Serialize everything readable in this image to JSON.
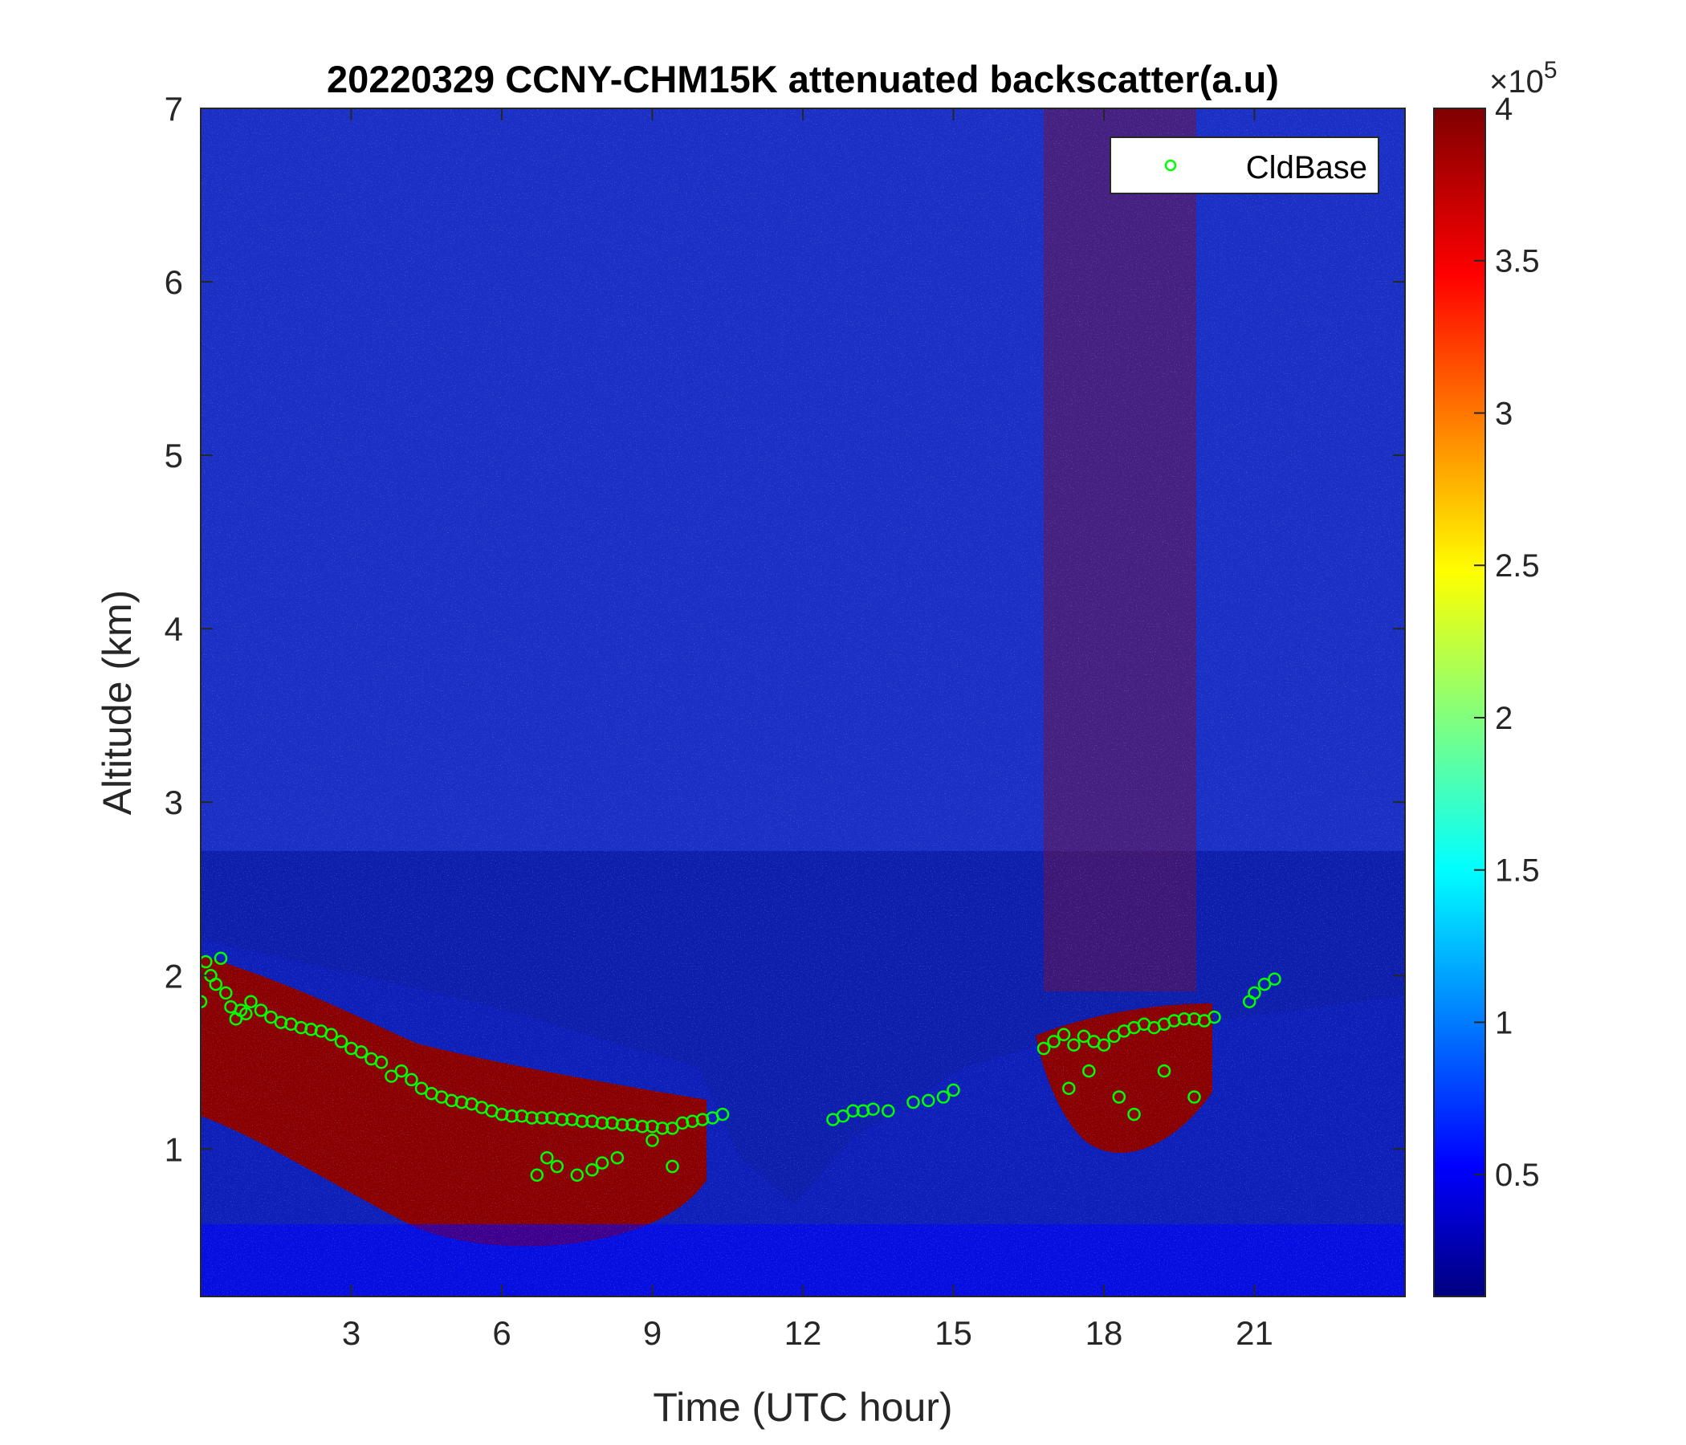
{
  "chart_data": {
    "type": "heatmap",
    "title": "20220329 CCNY-CHM15K attenuated backscatter(a.u)",
    "xlabel": "Time (UTC hour)",
    "ylabel": "Altitude (km)",
    "xlim": [
      0,
      24
    ],
    "ylim": [
      0.15,
      7
    ],
    "x_ticks": [
      3,
      6,
      9,
      12,
      15,
      18,
      21
    ],
    "x_tick_labels": [
      "3",
      "6",
      "9",
      "12",
      "15",
      "18",
      "21"
    ],
    "y_ticks": [
      1,
      2,
      3,
      4,
      5,
      6,
      7
    ],
    "y_tick_labels": [
      "1",
      "2",
      "3",
      "4",
      "5",
      "6",
      "7"
    ],
    "colorbar": {
      "colormap": "jet",
      "clim": [
        0.1,
        4.0
      ],
      "ticks": [
        0.5,
        1,
        1.5,
        2,
        2.5,
        3,
        3.5,
        4
      ],
      "tick_labels": [
        "0.5",
        "1",
        "1.5",
        "2",
        "2.5",
        "3",
        "3.5",
        "4"
      ],
      "exponent_label": "×10",
      "exponent_power": "5"
    },
    "legend": {
      "placement": "top-right",
      "entries": [
        {
          "name": "CldBase",
          "marker": "circle",
          "color": "#00ff00"
        }
      ]
    },
    "series": [
      {
        "name": "CldBase",
        "type": "scatter",
        "x": [
          0.0,
          0.1,
          0.2,
          0.3,
          0.4,
          0.5,
          0.6,
          0.7,
          0.8,
          0.9,
          1.0,
          1.2,
          1.4,
          1.6,
          1.8,
          2.0,
          2.2,
          2.4,
          2.6,
          2.8,
          3.0,
          3.2,
          3.4,
          3.6,
          3.8,
          4.0,
          4.2,
          4.4,
          4.6,
          4.8,
          5.0,
          5.2,
          5.4,
          5.6,
          5.8,
          6.0,
          6.2,
          6.4,
          6.6,
          6.8,
          7.0,
          7.2,
          7.4,
          7.6,
          7.8,
          8.0,
          8.2,
          8.4,
          8.6,
          8.8,
          9.0,
          9.2,
          9.4,
          9.6,
          9.8,
          10.0,
          10.2,
          10.4,
          12.6,
          12.8,
          13.0,
          13.2,
          13.4,
          13.7,
          14.2,
          14.5,
          14.8,
          15.0,
          16.8,
          17.0,
          17.2,
          17.4,
          17.6,
          17.8,
          18.0,
          18.2,
          18.4,
          18.6,
          18.8,
          19.0,
          19.2,
          19.4,
          19.6,
          19.8,
          20.0,
          20.2,
          20.9,
          21.0,
          21.2,
          21.4,
          6.7,
          6.9,
          7.1,
          7.5,
          7.8,
          8.0,
          8.3,
          9.0,
          9.4,
          18.3,
          18.6,
          19.2,
          19.8,
          17.3,
          17.7
        ],
        "y": [
          1.85,
          2.08,
          2.0,
          1.95,
          2.1,
          1.9,
          1.82,
          1.75,
          1.8,
          1.78,
          1.85,
          1.8,
          1.76,
          1.73,
          1.72,
          1.7,
          1.69,
          1.68,
          1.66,
          1.62,
          1.58,
          1.56,
          1.52,
          1.5,
          1.42,
          1.45,
          1.4,
          1.35,
          1.32,
          1.3,
          1.28,
          1.27,
          1.26,
          1.24,
          1.22,
          1.2,
          1.19,
          1.19,
          1.18,
          1.18,
          1.18,
          1.17,
          1.17,
          1.16,
          1.16,
          1.15,
          1.15,
          1.14,
          1.14,
          1.13,
          1.13,
          1.12,
          1.12,
          1.15,
          1.16,
          1.17,
          1.18,
          1.2,
          1.17,
          1.19,
          1.22,
          1.22,
          1.23,
          1.22,
          1.27,
          1.28,
          1.3,
          1.34,
          1.58,
          1.62,
          1.66,
          1.6,
          1.65,
          1.62,
          1.6,
          1.65,
          1.68,
          1.7,
          1.72,
          1.7,
          1.72,
          1.74,
          1.75,
          1.75,
          1.74,
          1.76,
          1.85,
          1.9,
          1.95,
          1.98,
          0.85,
          0.95,
          0.9,
          0.85,
          0.88,
          0.92,
          0.95,
          1.05,
          0.9,
          1.3,
          1.2,
          1.45,
          1.3,
          1.35,
          1.45
        ]
      }
    ]
  }
}
